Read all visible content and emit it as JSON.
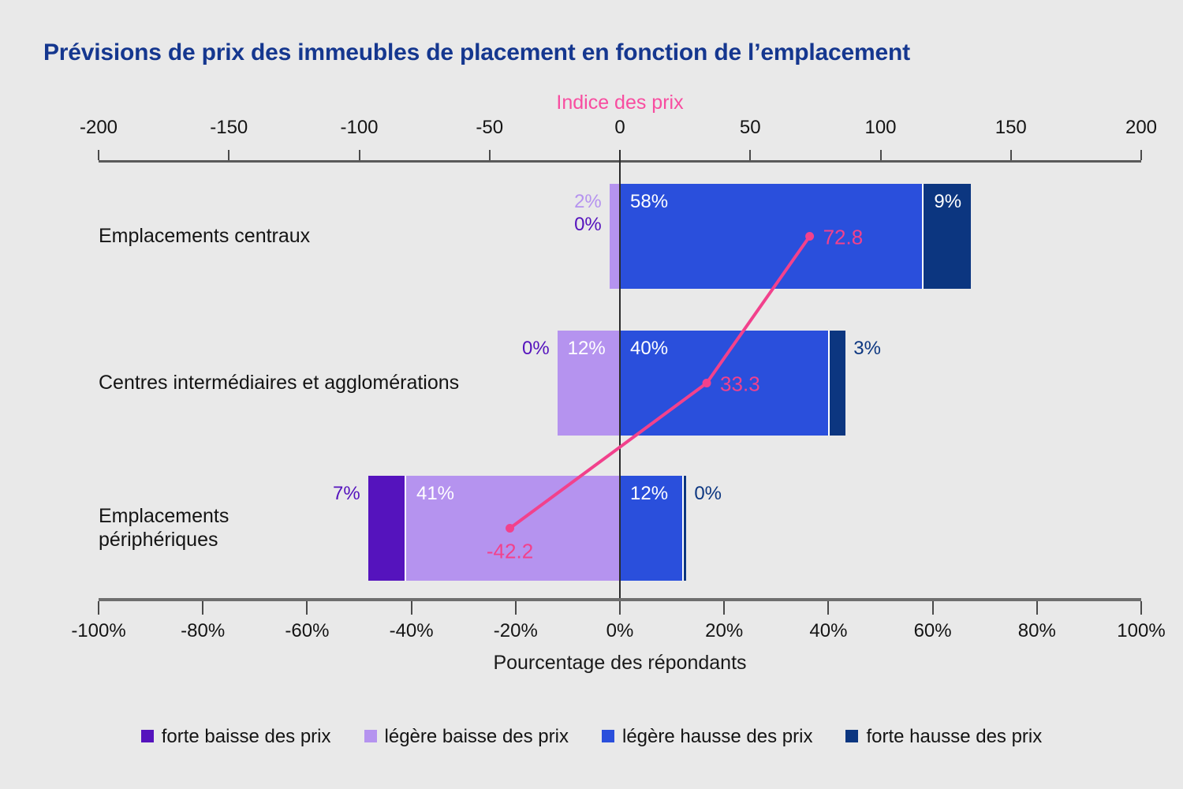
{
  "title": "Prévisions de prix des immeubles de placement en fonction de l’emplacement",
  "colors": {
    "background": "#e9e9e9",
    "title_blue": "#15378f",
    "forte_baisse": "#5513bd",
    "legere_baisse": "#b593ef",
    "legere_hausse": "#2a4fdc",
    "forte_hausse": "#0c3680",
    "pink_line": "#f2418c",
    "pink_title": "#f84da0",
    "axis_gray": "#5a5a5a",
    "text_black": "#141414",
    "white": "#ffffff"
  },
  "chart_data": {
    "type": "bar",
    "subtype": "diverging-stacked-horizontal-with-line-overlay",
    "categories": [
      "Emplacements centraux",
      "Centres intermédiaires et agglomérations",
      "Emplacements\npériphériques"
    ],
    "series": [
      {
        "key": "forte_baisse",
        "name": "forte baisse des prix",
        "direction": "negative",
        "values": [
          0,
          0,
          7
        ]
      },
      {
        "key": "legere_baisse",
        "name": "légère baisse des prix",
        "direction": "negative",
        "values": [
          2,
          12,
          41
        ]
      },
      {
        "key": "legere_hausse",
        "name": "légère hausse des prix",
        "direction": "positive",
        "values": [
          58,
          40,
          12
        ]
      },
      {
        "key": "forte_hausse",
        "name": "forte hausse des prix",
        "direction": "positive",
        "values": [
          9,
          3,
          0
        ]
      }
    ],
    "value_labels": [
      {
        "row": 0,
        "series": "legere_baisse",
        "text": "2%",
        "placement": "outer-left",
        "line": 0
      },
      {
        "row": 0,
        "series": "forte_baisse",
        "text": "0%",
        "placement": "outer-left",
        "line": 1
      },
      {
        "row": 0,
        "series": "legere_hausse",
        "text": "58%",
        "placement": "inner"
      },
      {
        "row": 0,
        "series": "forte_hausse",
        "text": "9%",
        "placement": "inner"
      },
      {
        "row": 1,
        "series": "forte_baisse",
        "text": "0%",
        "placement": "outer-left",
        "line": 0
      },
      {
        "row": 1,
        "series": "legere_baisse",
        "text": "12%",
        "placement": "inner"
      },
      {
        "row": 1,
        "series": "legere_hausse",
        "text": "40%",
        "placement": "inner"
      },
      {
        "row": 1,
        "series": "forte_hausse",
        "text": "3%",
        "placement": "outer-right"
      },
      {
        "row": 2,
        "series": "forte_baisse",
        "text": "7%",
        "placement": "outer-left",
        "line": 0
      },
      {
        "row": 2,
        "series": "legere_baisse",
        "text": "41%",
        "placement": "inner"
      },
      {
        "row": 2,
        "series": "legere_hausse",
        "text": "12%",
        "placement": "inner"
      },
      {
        "row": 2,
        "series": "forte_hausse",
        "text": "0%",
        "placement": "outer-right"
      }
    ],
    "line_series": {
      "name": "Indice des prix",
      "axis": "top",
      "values": [
        72.8,
        33.3,
        -42.2
      ],
      "point_labels": [
        "72.8",
        "33.3",
        "-42.2"
      ],
      "label_positions": [
        "right",
        "right",
        "below"
      ]
    },
    "top_axis": {
      "title": "Indice des prix",
      "min": -200,
      "max": 200,
      "ticks": [
        -200,
        -150,
        -100,
        -50,
        0,
        50,
        100,
        150,
        200
      ]
    },
    "bottom_axis": {
      "title": "Pourcentage des répondants",
      "min": -100,
      "max": 100,
      "ticks": [
        -100,
        -80,
        -60,
        -40,
        -20,
        0,
        20,
        40,
        60,
        80,
        100
      ],
      "tick_suffix": "%"
    },
    "legend_position": "bottom",
    "grid": false
  },
  "legend": [
    {
      "key": "forte_baisse",
      "label": "forte baisse des prix"
    },
    {
      "key": "legere_baisse",
      "label": "légère baisse des prix"
    },
    {
      "key": "legere_hausse",
      "label": "légère hausse des prix"
    },
    {
      "key": "forte_hausse",
      "label": "forte hausse des prix"
    }
  ]
}
